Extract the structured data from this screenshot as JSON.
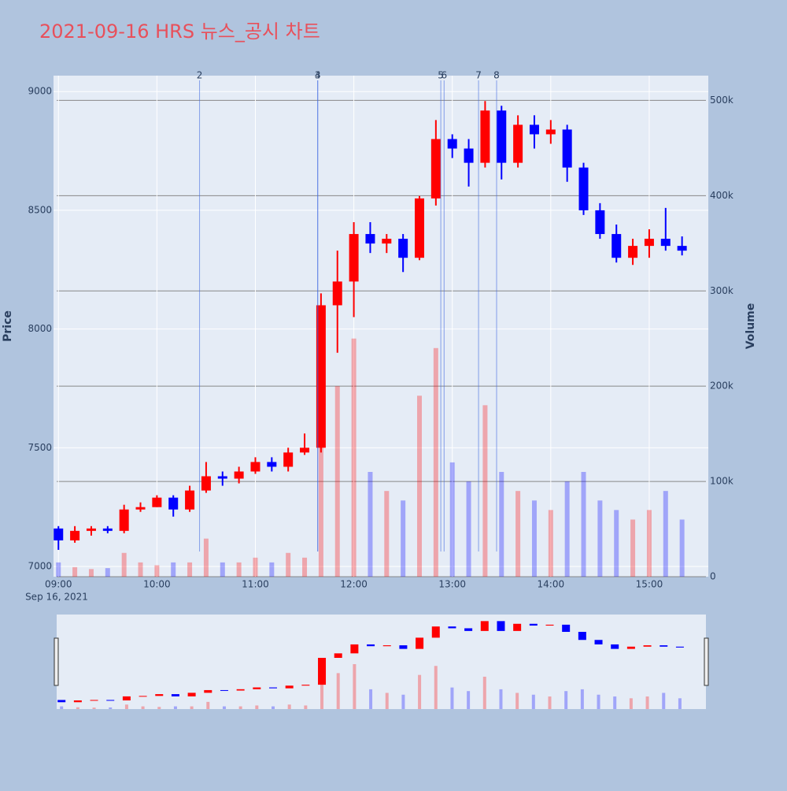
{
  "chart_data": {
    "type": "candlestick",
    "title": "2021-09-16 HRS 뉴스_공시 차트",
    "ylabel": "Price",
    "y2label": "Volume",
    "x_date_label": "Sep 16, 2021",
    "x": [
      "09:00",
      "09:10",
      "09:20",
      "09:30",
      "09:40",
      "09:50",
      "10:00",
      "10:10",
      "10:20",
      "10:30",
      "10:40",
      "10:50",
      "11:00",
      "11:10",
      "11:20",
      "11:30",
      "11:40",
      "11:50",
      "12:00",
      "12:10",
      "12:20",
      "12:30",
      "12:40",
      "12:50",
      "13:00",
      "13:10",
      "13:20",
      "13:30",
      "13:40",
      "13:50",
      "14:00",
      "14:10",
      "14:20",
      "14:30",
      "14:40",
      "14:50",
      "15:00",
      "15:10",
      "15:20"
    ],
    "open": [
      7160,
      7110,
      7150,
      7160,
      7150,
      7240,
      7250,
      7290,
      7240,
      7320,
      7380,
      7370,
      7400,
      7440,
      7420,
      7480,
      7500,
      8100,
      8200,
      8400,
      8360,
      8380,
      8300,
      8550,
      8800,
      8760,
      8700,
      8920,
      8700,
      8860,
      8820,
      8840,
      8680,
      8500,
      8400,
      8300,
      8350,
      8380,
      8350
    ],
    "high": [
      7170,
      7170,
      7170,
      7170,
      7260,
      7270,
      7300,
      7300,
      7340,
      7440,
      7400,
      7420,
      7460,
      7460,
      7500,
      7560,
      8150,
      8330,
      8450,
      8450,
      8400,
      8400,
      8560,
      8880,
      8820,
      8800,
      8960,
      8940,
      8900,
      8900,
      8880,
      8860,
      8700,
      8530,
      8440,
      8380,
      8420,
      8510,
      8390
    ],
    "low": [
      7070,
      7100,
      7130,
      7140,
      7140,
      7230,
      7250,
      7210,
      7230,
      7310,
      7340,
      7350,
      7390,
      7400,
      7400,
      7470,
      7480,
      7900,
      8050,
      8320,
      8320,
      8240,
      8290,
      8520,
      8720,
      8600,
      8680,
      8630,
      8680,
      8760,
      8780,
      8620,
      8480,
      8380,
      8280,
      8270,
      8300,
      8330,
      8310
    ],
    "close": [
      7110,
      7150,
      7160,
      7150,
      7240,
      7250,
      7290,
      7240,
      7320,
      7380,
      7370,
      7400,
      7440,
      7420,
      7480,
      7500,
      8100,
      8200,
      8400,
      8360,
      8380,
      8300,
      8550,
      8800,
      8760,
      8700,
      8920,
      8700,
      8860,
      8820,
      8840,
      8680,
      8500,
      8400,
      8300,
      8350,
      8380,
      8350,
      8330
    ],
    "volume": [
      15000,
      10000,
      8000,
      9000,
      25000,
      15000,
      12000,
      15000,
      15000,
      40000,
      15000,
      15000,
      20000,
      15000,
      25000,
      20000,
      230000,
      200000,
      250000,
      110000,
      90000,
      80000,
      190000,
      240000,
      120000,
      100000,
      180000,
      110000,
      90000,
      80000,
      70000,
      100000,
      110000,
      80000,
      70000,
      60000,
      70000,
      90000,
      60000
    ],
    "up_color": "#ff0000",
    "down_color": "#0000ff",
    "xlim": [
      "08:57",
      "15:36"
    ],
    "xticks": [
      "09:00",
      "10:00",
      "11:00",
      "12:00",
      "13:00",
      "14:00",
      "15:00"
    ],
    "ylim": [
      6957,
      9067
    ],
    "yticks": [
      7000,
      7500,
      8000,
      8500,
      9000
    ],
    "y2lim": [
      0,
      526000
    ],
    "y2ticks": [
      0,
      {
        "value": 100000,
        "label": "100k"
      },
      {
        "value": 200000,
        "label": "200k"
      },
      {
        "value": 300000,
        "label": "300k"
      },
      {
        "value": 400000,
        "label": "400k"
      },
      {
        "value": 500000,
        "label": "500k"
      }
    ],
    "annotations": [
      {
        "x": "10:26",
        "label": "2"
      },
      {
        "x": "11:38",
        "label": "3"
      },
      {
        "x": "11:38",
        "label": "4"
      },
      {
        "x": "12:53",
        "label": "5"
      },
      {
        "x": "12:55",
        "label": "6"
      },
      {
        "x": "13:16",
        "label": "7"
      },
      {
        "x": "13:27",
        "label": "8"
      }
    ],
    "grid": true
  }
}
